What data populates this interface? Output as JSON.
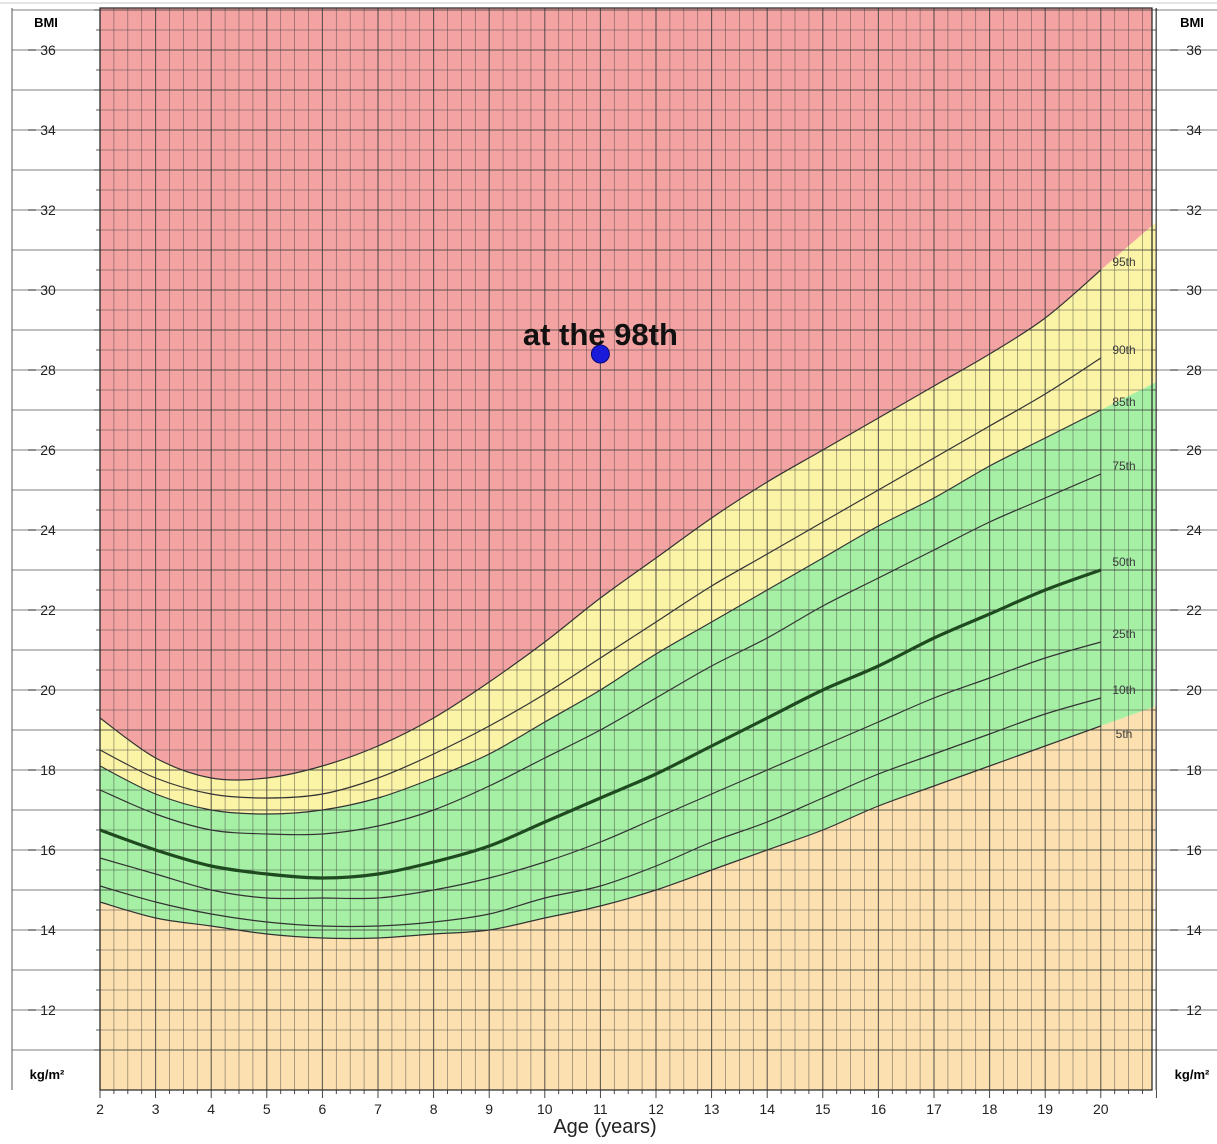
{
  "chart_data": {
    "type": "line",
    "xlabel": "Age (years)",
    "ylabel_top": "BMI",
    "ylabel_bottom": "kg/m²",
    "xlim": [
      2,
      21
    ],
    "ylim": [
      11,
      37
    ],
    "x_ticks": [
      2,
      3,
      4,
      5,
      6,
      7,
      8,
      9,
      10,
      11,
      12,
      13,
      14,
      15,
      16,
      17,
      18,
      19,
      20
    ],
    "y_ticks": [
      12,
      14,
      16,
      18,
      20,
      22,
      24,
      26,
      28,
      30,
      32,
      34,
      36
    ],
    "grid": true,
    "colors": {
      "obese_zone": "#f4a3a3",
      "overweight_zone": "#fbf3a6",
      "healthy_zone": "#a6f0a6",
      "underweight_zone": "#fce0b0",
      "grid_line": "#3a3a3a",
      "percentile_line": "#333333",
      "median_line": "#1f4a1f",
      "point": "#1a1adb"
    },
    "x": [
      2,
      3,
      4,
      5,
      6,
      7,
      8,
      9,
      10,
      11,
      12,
      13,
      14,
      15,
      16,
      17,
      18,
      19,
      20
    ],
    "series": [
      {
        "name": "5th",
        "values": [
          14.7,
          14.3,
          14.1,
          13.9,
          13.8,
          13.8,
          13.9,
          14.0,
          14.3,
          14.6,
          15.0,
          15.5,
          16.0,
          16.5,
          17.1,
          17.6,
          18.1,
          18.6,
          19.1
        ]
      },
      {
        "name": "10th",
        "values": [
          15.1,
          14.7,
          14.4,
          14.2,
          14.1,
          14.1,
          14.2,
          14.4,
          14.8,
          15.1,
          15.6,
          16.2,
          16.7,
          17.3,
          17.9,
          18.4,
          18.9,
          19.4,
          19.8
        ]
      },
      {
        "name": "25th",
        "values": [
          15.8,
          15.4,
          15.0,
          14.8,
          14.8,
          14.8,
          15.0,
          15.3,
          15.7,
          16.2,
          16.8,
          17.4,
          18.0,
          18.6,
          19.2,
          19.8,
          20.3,
          20.8,
          21.2
        ]
      },
      {
        "name": "50th",
        "values": [
          16.5,
          16.0,
          15.6,
          15.4,
          15.3,
          15.4,
          15.7,
          16.1,
          16.7,
          17.3,
          17.9,
          18.6,
          19.3,
          20.0,
          20.6,
          21.3,
          21.9,
          22.5,
          23.0
        ]
      },
      {
        "name": "75th",
        "values": [
          17.5,
          16.9,
          16.5,
          16.4,
          16.4,
          16.6,
          17.0,
          17.6,
          18.3,
          19.0,
          19.8,
          20.6,
          21.3,
          22.1,
          22.8,
          23.5,
          24.2,
          24.8,
          25.4
        ]
      },
      {
        "name": "85th",
        "values": [
          18.1,
          17.4,
          17.0,
          16.9,
          17.0,
          17.3,
          17.8,
          18.4,
          19.2,
          20.0,
          20.9,
          21.7,
          22.5,
          23.3,
          24.1,
          24.8,
          25.6,
          26.3,
          27.0
        ]
      },
      {
        "name": "90th",
        "values": [
          18.5,
          17.8,
          17.4,
          17.3,
          17.4,
          17.8,
          18.4,
          19.1,
          19.9,
          20.8,
          21.7,
          22.6,
          23.4,
          24.2,
          25.0,
          25.8,
          26.6,
          27.4,
          28.3
        ]
      },
      {
        "name": "95th",
        "values": [
          19.3,
          18.3,
          17.8,
          17.8,
          18.1,
          18.6,
          19.3,
          20.2,
          21.2,
          22.3,
          23.3,
          24.3,
          25.2,
          26.0,
          26.8,
          27.6,
          28.4,
          29.3,
          30.5
        ]
      }
    ],
    "point": {
      "x": 11,
      "y": 28.4,
      "label": "at the 98th"
    }
  }
}
